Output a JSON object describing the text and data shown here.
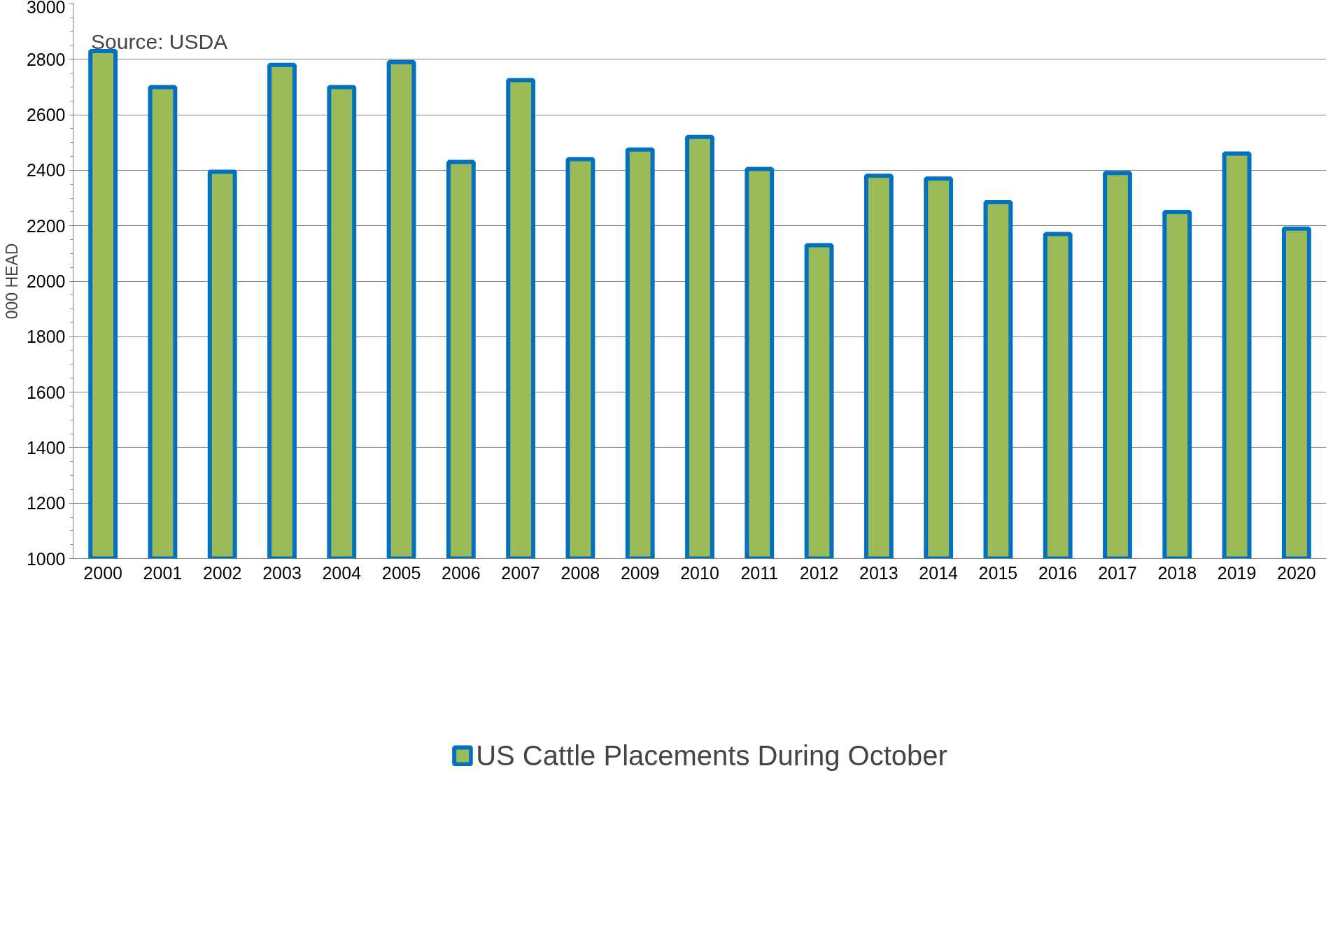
{
  "chart_data": {
    "type": "bar",
    "ylabel": "000 HEAD",
    "annotations": [
      "Source: USDA"
    ],
    "categories": [
      "2000",
      "2001",
      "2002",
      "2003",
      "2004",
      "2005",
      "2006",
      "2007",
      "2008",
      "2009",
      "2010",
      "2011",
      "2012",
      "2013",
      "2014",
      "2015",
      "2016",
      "2017",
      "2018",
      "2019",
      "2020"
    ],
    "series": [
      {
        "name": "US Cattle Placements During October",
        "color": "#9bbb59",
        "values": [
          2830,
          2700,
          2395,
          2780,
          2700,
          2790,
          2430,
          2725,
          2440,
          2475,
          2520,
          2405,
          2130,
          2380,
          2370,
          2285,
          2170,
          2390,
          2250,
          2460,
          2190
        ]
      }
    ],
    "ylim": [
      1000,
      3000
    ],
    "yticks": [
      1000,
      1200,
      1400,
      1600,
      1800,
      2000,
      2200,
      2400,
      2600,
      2800,
      3000
    ],
    "grid": "y",
    "legend": "bottom"
  }
}
